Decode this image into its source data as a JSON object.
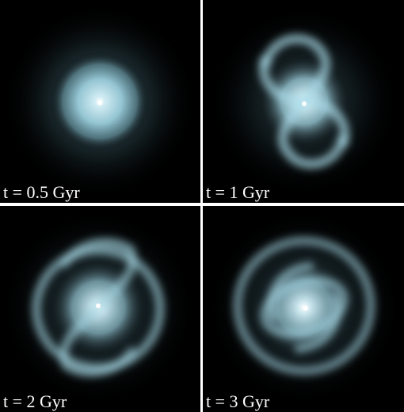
{
  "panels": [
    {
      "label": "t = 0.5 Gyr",
      "stage": "smooth-disk"
    },
    {
      "label": "t = 1 Gyr",
      "stage": "spiral-arms"
    },
    {
      "label": "t = 2 Gyr",
      "stage": "spiral-arms-ring"
    },
    {
      "label": "t = 3 Gyr",
      "stage": "ring-bar"
    }
  ],
  "colors": {
    "background": "#000000",
    "glow": "#8ec3d0",
    "core": "#ffffff",
    "separator": "#ffffff",
    "label": "#ffffff"
  }
}
